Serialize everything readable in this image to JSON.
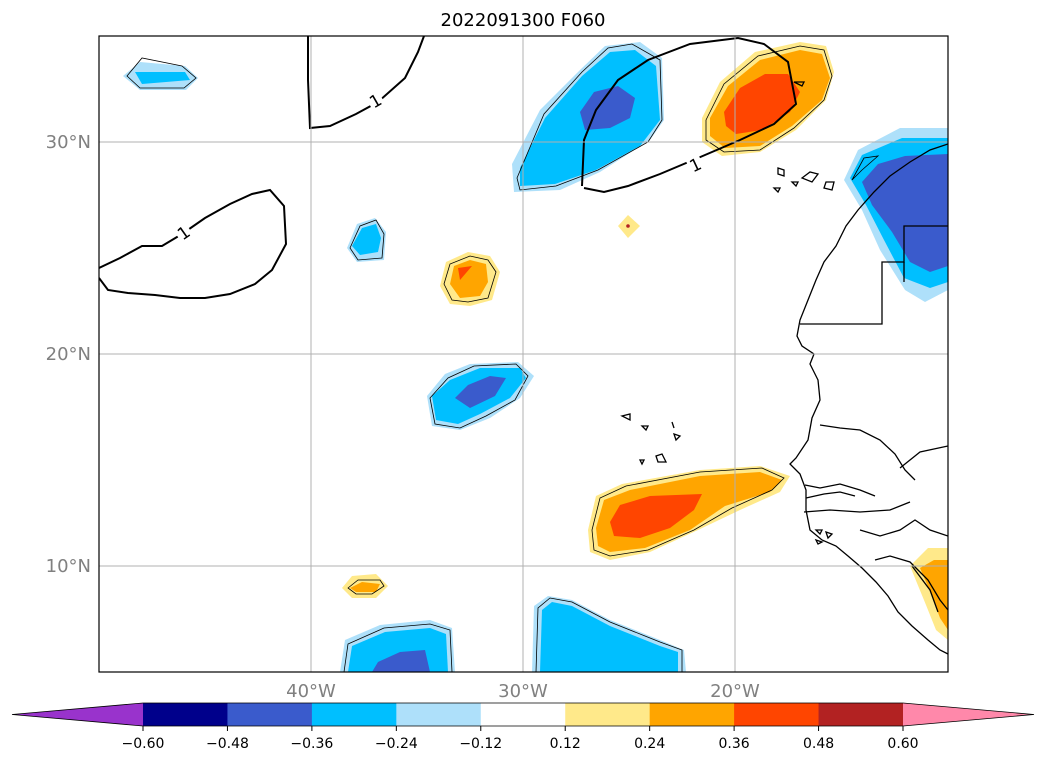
{
  "title": "2022091300 F060",
  "lat_labels": [
    "30°N",
    "20°N",
    "10°N"
  ],
  "lon_labels": [
    "40°W",
    "30°W",
    "20°W"
  ],
  "contour_labels": [
    "1",
    "1",
    "1"
  ],
  "colorbar": {
    "ticks": [
      "−0.60",
      "−0.48",
      "−0.36",
      "−0.24",
      "−0.12",
      "0.12",
      "0.24",
      "0.36",
      "0.48",
      "0.60"
    ],
    "colors": [
      "#9933cc",
      "#00008b",
      "#3a5bcc",
      "#00bfff",
      "#aee0fa",
      "#ffffff",
      "#ffe98a",
      "#ffa500",
      "#ff4500",
      "#b22222",
      "#ff88aa"
    ]
  },
  "colors": {
    "gridline": "#b0b0b0",
    "frame": "#000000",
    "coast": "#000000"
  }
}
